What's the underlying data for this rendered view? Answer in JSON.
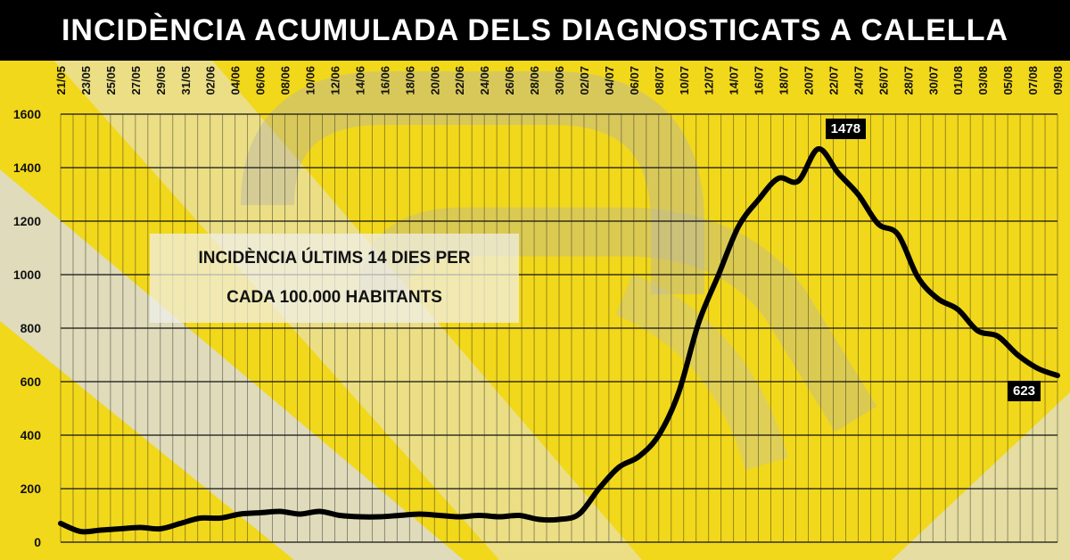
{
  "title": "INCIDÈNCIA ACUMULADA DELS DIAGNOSTICATS A CALELLA",
  "info_box": {
    "line1": "INCIDÈNCIA ÚLTIMS 14 DIES PER",
    "line2": "CADA 100.000 HABITANTS"
  },
  "colors": {
    "background": "#f2d81a",
    "line": "#000000",
    "title_bar": "#000000",
    "title_text": "#ffffff",
    "grid": "#111111"
  },
  "chart_data": {
    "type": "line",
    "title": "INCIDÈNCIA ACUMULADA DELS DIAGNOSTICATS A CALELLA",
    "xlabel": "",
    "ylabel": "",
    "ylim": [
      0,
      1600
    ],
    "yticks": [
      0,
      200,
      400,
      600,
      800,
      1000,
      1200,
      1400,
      1600
    ],
    "grid": true,
    "x_tick_labels": [
      "21/05",
      "23/05",
      "25/05",
      "27/05",
      "29/05",
      "31/05",
      "02/06",
      "04/06",
      "06/06",
      "08/06",
      "10/06",
      "12/06",
      "14/06",
      "16/06",
      "18/06",
      "20/06",
      "22/06",
      "24/06",
      "26/06",
      "28/06",
      "30/06",
      "02/07",
      "04/07",
      "06/07",
      "08/07",
      "10/07",
      "12/07",
      "14/07",
      "16/07",
      "18/07",
      "20/07",
      "22/07",
      "24/07",
      "26/07",
      "28/07",
      "30/07",
      "01/08",
      "03/08",
      "05/08",
      "07/08",
      "09/08"
    ],
    "series": [
      {
        "values": [
          70,
          40,
          45,
          50,
          55,
          50,
          70,
          90,
          90,
          105,
          110,
          115,
          105,
          115,
          100,
          95,
          95,
          100,
          105,
          100,
          95,
          100,
          95,
          100,
          85,
          85,
          105,
          200,
          280,
          320,
          400,
          560,
          820,
          1000,
          1180,
          1280,
          1360,
          1350,
          1470,
          1380,
          1300,
          1190,
          1150,
          990,
          910,
          870,
          790,
          770,
          700,
          650,
          623
        ]
      }
    ],
    "annotations": [
      {
        "label": "1478",
        "value": 1478
      },
      {
        "label": "623",
        "value": 623
      }
    ]
  }
}
